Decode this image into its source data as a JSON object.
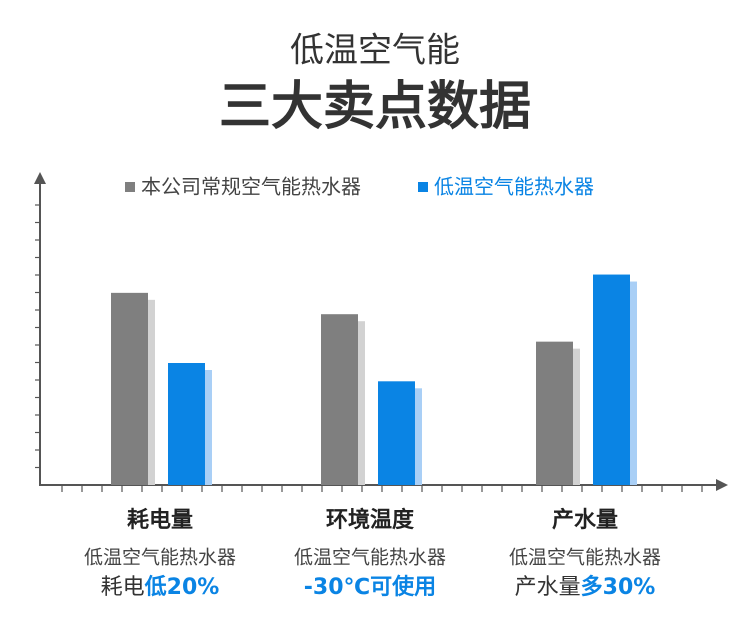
{
  "chart_data": {
    "type": "bar",
    "title": "低温空气能",
    "subtitle": "三大卖点数据",
    "categories": [
      "耗电量",
      "环境温度",
      "产水量"
    ],
    "series": [
      {
        "name": "本公司常规空气能热水器",
        "color": "#7f7f7f",
        "values": [
          63,
          56,
          47
        ]
      },
      {
        "name": "低温空气能热水器",
        "color": "#0a84e4",
        "values": [
          40,
          34,
          69
        ]
      }
    ],
    "ylim": [
      0,
      100
    ],
    "annotations": [
      {
        "line1": "低温空气能热水器",
        "parts": [
          {
            "text": "耗电",
            "highlight": false
          },
          {
            "text": "低20%",
            "highlight": true
          }
        ]
      },
      {
        "line1": "低温空气能热水器",
        "parts": [
          {
            "text": "-30℃可使用",
            "highlight": true
          }
        ]
      },
      {
        "line1": "低温空气能热水器",
        "parts": [
          {
            "text": "产水量",
            "highlight": false
          },
          {
            "text": "多30%",
            "highlight": true
          }
        ]
      }
    ]
  }
}
